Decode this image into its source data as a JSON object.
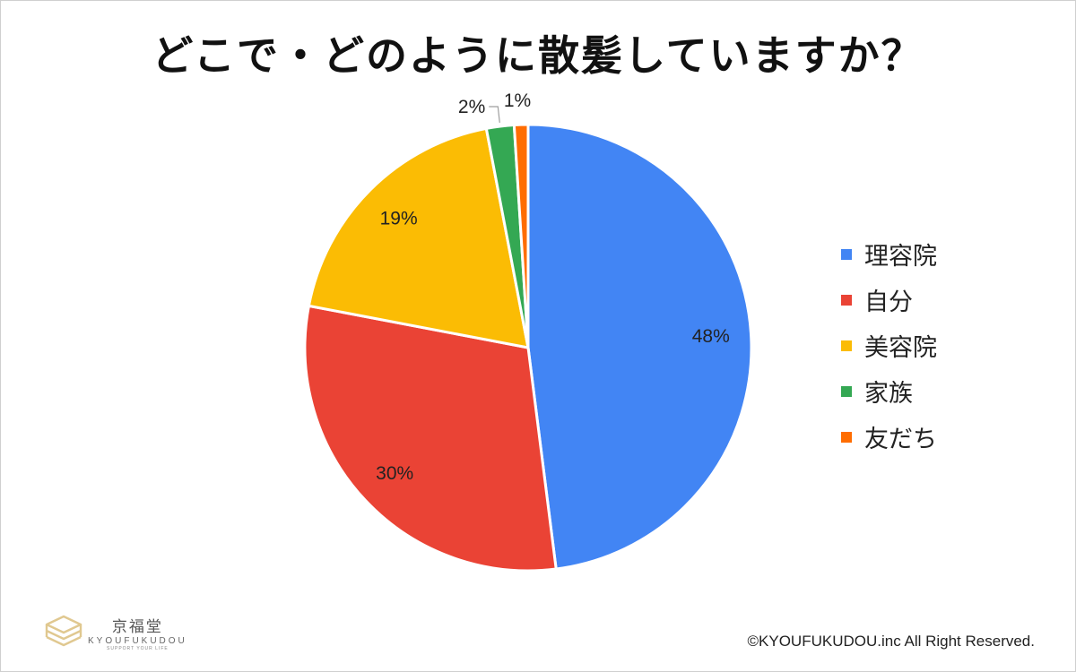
{
  "chart_data": {
    "type": "pie",
    "title": "どこで・どのように散髪していますか？",
    "categories": [
      "理容院",
      "自分",
      "美容院",
      "家族",
      "友だち"
    ],
    "values": [
      48,
      30,
      19,
      2,
      1
    ],
    "labels": [
      "48%",
      "30%",
      "19%",
      "2%",
      "1%"
    ],
    "colors": [
      "#4285f4",
      "#ea4335",
      "#fbbc04",
      "#34a853",
      "#ff6d01"
    ],
    "legend_position": "right"
  },
  "branding": {
    "logo_name": "京福堂",
    "logo_romaji": "KYOUFUKUDOU",
    "logo_tagline": "SUPPORT YOUR LIFE",
    "copyright": "©KYOUFUKUDOU.inc All Right Reserved."
  }
}
